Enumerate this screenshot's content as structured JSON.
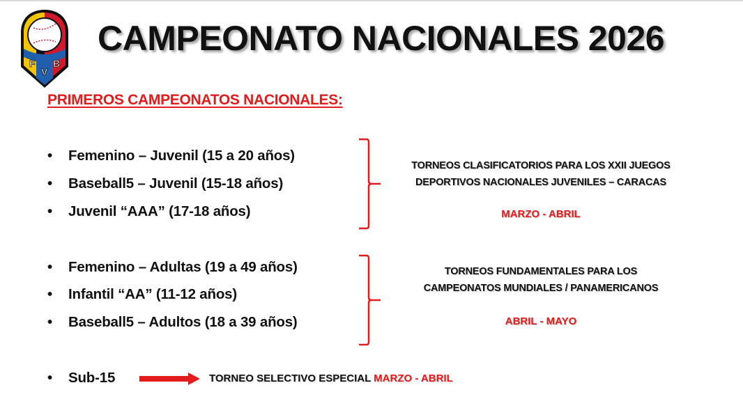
{
  "header": {
    "title": "CAMPEONATO NACIONALES 2026",
    "logo_text": "FVB"
  },
  "subtitle": "PRIMEROS CAMPEONATOS NACIONALES:",
  "colors": {
    "accent": "#e31b1b",
    "text": "#111111"
  },
  "groups": [
    {
      "items": [
        "Femenino – Juvenil (15 a 20 años)",
        "Baseball5 – Juvenil (15-18 años)",
        "Juvenil “AAA” (17-18 años)"
      ],
      "description": [
        "TORNEOS CLASIFICATORIOS PARA LOS XXII JUEGOS",
        "DEPORTIVOS NACIONALES JUVENILES – CARACAS"
      ],
      "dates": "MARZO - ABRIL"
    },
    {
      "items": [
        "Femenino – Adultas (19 a 49 años)",
        "Infantil “AA” (11-12 años)",
        "Baseball5 – Adultos (18 a 39 años)"
      ],
      "description": [
        "TORNEOS FUNDAMENTALES PARA LOS",
        "CAMPEONATOS MUNDIALES / PANAMERICANOS"
      ],
      "dates": "ABRIL - MAYO"
    }
  ],
  "special": {
    "item": "Sub-15",
    "description": "TORNEO SELECTIVO ESPECIAL",
    "dates": "MARZO - ABRIL"
  },
  "bullet": "•"
}
